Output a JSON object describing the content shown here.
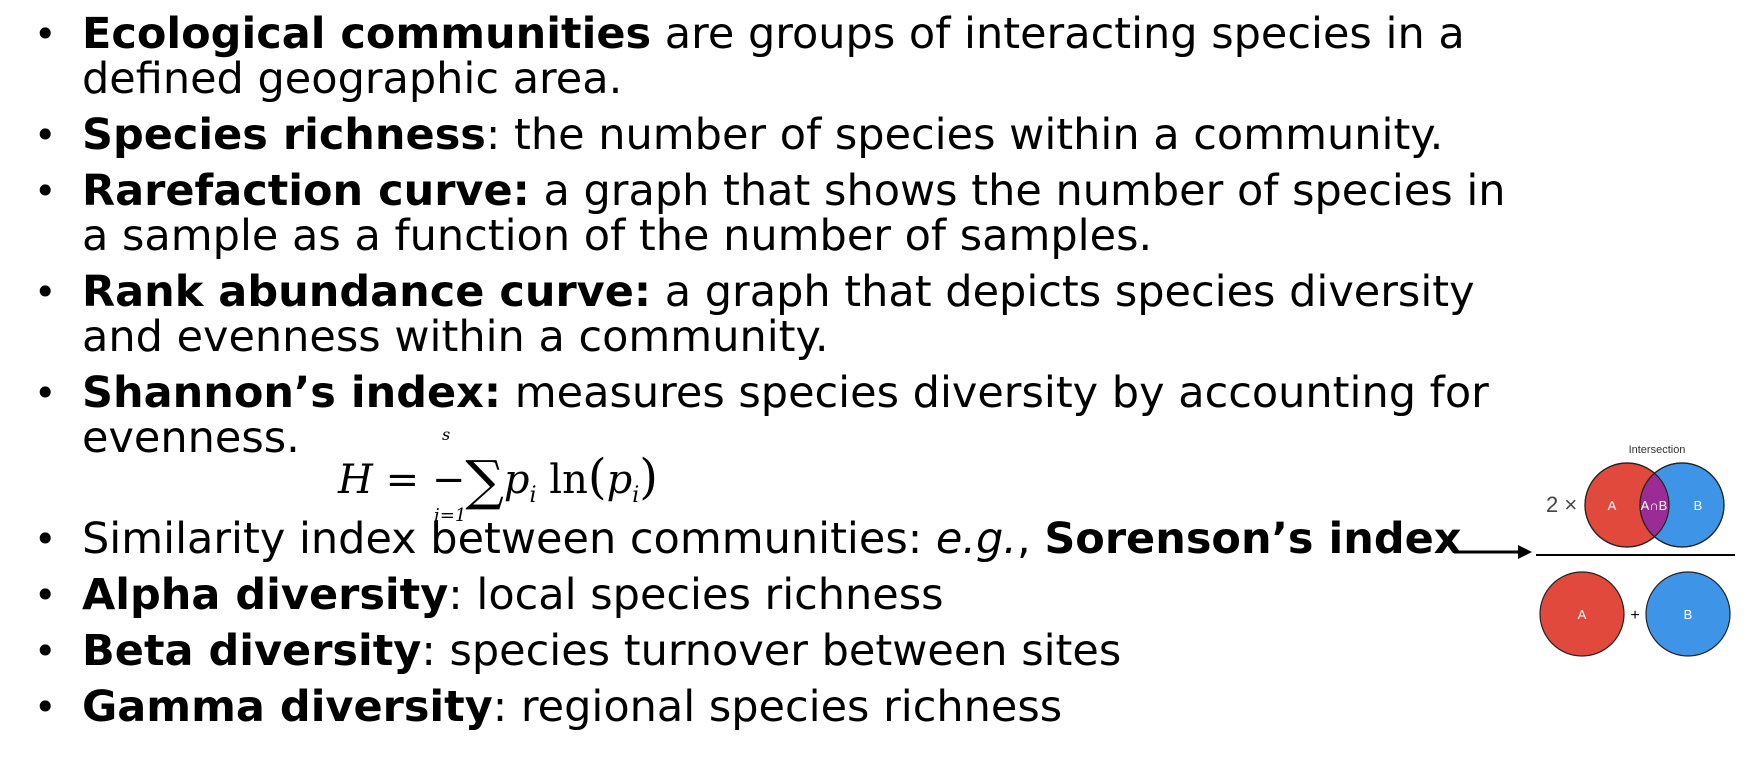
{
  "bullets": [
    {
      "term": "Ecological communities",
      "text": " are groups of interacting species in a",
      "text2": "defined geographic area."
    },
    {
      "term": "Species richness",
      "text": ": the number of species within a community."
    },
    {
      "term": "Rarefaction curve:",
      "text": " a graph that shows the number of species in",
      "text2": "a sample as a function of the number of samples."
    },
    {
      "term": "Rank abundance curve:",
      "text": " a graph that depicts species diversity",
      "text2": "and evenness within a community."
    },
    {
      "term": "Shannon’s index:",
      "text": " measures species diversity by accounting for",
      "text2": "evenness."
    },
    {
      "prefix": "Similarity index between communities: ",
      "italic": "e.g.",
      "comma": ", ",
      "term": "Sorenson’s index"
    },
    {
      "term": "Alpha diversity",
      "text": ": local species richness"
    },
    {
      "term": "Beta diversity",
      "text": ": species turnover between sites"
    },
    {
      "term": "Gamma diversity",
      "text": ": regional species richness"
    }
  ],
  "bullet_char": "•",
  "formula": {
    "lhs": "H",
    "eq": " = −",
    "sigma": "∑",
    "upper": "s",
    "lower": "i=1",
    "p": "p",
    "sub_i": "i",
    "ln": "ln",
    "open": "(",
    "close": ")"
  },
  "venn": {
    "label_intersection": "Intersection",
    "multiplier": "2 ×",
    "a": "A",
    "b": "B",
    "ab": "A∩B",
    "plus": "+",
    "color_a": "#E0493B",
    "color_b": "#3E95E8",
    "color_ab": "#9C2C95"
  }
}
